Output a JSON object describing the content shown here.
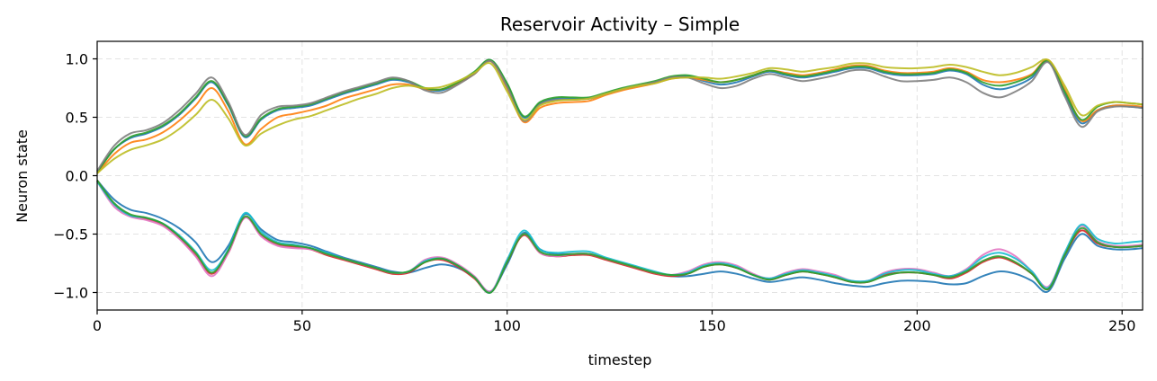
{
  "chart_data": {
    "type": "line",
    "title": "Reservoir Activity – Simple",
    "xlabel": "timestep",
    "ylabel": "Neuron state",
    "xlim": [
      0,
      255
    ],
    "ylim": [
      -1.15,
      1.15
    ],
    "xticks": [
      0,
      50,
      100,
      150,
      200,
      250
    ],
    "xtick_labels": [
      "0",
      "50",
      "100",
      "150",
      "200",
      "250"
    ],
    "yticks": [
      -1.0,
      -0.5,
      0.0,
      0.5,
      1.0
    ],
    "ytick_labels": [
      "−1.0",
      "−0.5",
      "0.0",
      "0.5",
      "1.0"
    ],
    "grid": true,
    "x": [
      0,
      4,
      8,
      12,
      16,
      20,
      24,
      28,
      32,
      36,
      40,
      44,
      48,
      52,
      56,
      60,
      64,
      68,
      72,
      76,
      80,
      84,
      88,
      92,
      96,
      100,
      104,
      108,
      112,
      116,
      120,
      124,
      128,
      132,
      136,
      140,
      144,
      148,
      152,
      156,
      160,
      164,
      168,
      172,
      176,
      180,
      184,
      188,
      192,
      196,
      200,
      204,
      208,
      212,
      216,
      220,
      224,
      228,
      232,
      236,
      240,
      244,
      248,
      252,
      255
    ],
    "series": [
      {
        "color": "#1f77b4",
        "values": [
          0.03,
          0.22,
          0.32,
          0.36,
          0.42,
          0.52,
          0.66,
          0.8,
          0.6,
          0.33,
          0.48,
          0.56,
          0.58,
          0.6,
          0.65,
          0.7,
          0.74,
          0.78,
          0.82,
          0.8,
          0.74,
          0.73,
          0.79,
          0.88,
          0.99,
          0.78,
          0.5,
          0.62,
          0.66,
          0.66,
          0.66,
          0.7,
          0.74,
          0.77,
          0.8,
          0.84,
          0.85,
          0.81,
          0.78,
          0.8,
          0.85,
          0.89,
          0.86,
          0.84,
          0.86,
          0.89,
          0.92,
          0.92,
          0.88,
          0.86,
          0.86,
          0.87,
          0.9,
          0.87,
          0.78,
          0.74,
          0.77,
          0.84,
          0.98,
          0.7,
          0.45,
          0.56,
          0.6,
          0.59,
          0.58
        ]
      },
      {
        "color": "#ff7f0e",
        "values": [
          0.02,
          0.18,
          0.28,
          0.31,
          0.37,
          0.47,
          0.6,
          0.75,
          0.55,
          0.27,
          0.4,
          0.5,
          0.53,
          0.56,
          0.6,
          0.66,
          0.7,
          0.74,
          0.78,
          0.78,
          0.74,
          0.74,
          0.79,
          0.87,
          0.98,
          0.75,
          0.46,
          0.58,
          0.62,
          0.63,
          0.64,
          0.69,
          0.73,
          0.76,
          0.79,
          0.83,
          0.84,
          0.82,
          0.8,
          0.82,
          0.86,
          0.9,
          0.88,
          0.86,
          0.88,
          0.91,
          0.94,
          0.94,
          0.9,
          0.88,
          0.88,
          0.89,
          0.92,
          0.89,
          0.82,
          0.8,
          0.82,
          0.87,
          0.99,
          0.74,
          0.47,
          0.56,
          0.6,
          0.6,
          0.59
        ]
      },
      {
        "color": "#2ca02c",
        "values": [
          0.03,
          0.22,
          0.33,
          0.37,
          0.43,
          0.53,
          0.67,
          0.81,
          0.61,
          0.34,
          0.49,
          0.57,
          0.59,
          0.61,
          0.66,
          0.71,
          0.75,
          0.79,
          0.83,
          0.81,
          0.75,
          0.74,
          0.8,
          0.89,
          0.99,
          0.79,
          0.51,
          0.63,
          0.67,
          0.67,
          0.67,
          0.71,
          0.75,
          0.78,
          0.81,
          0.85,
          0.86,
          0.83,
          0.8,
          0.82,
          0.86,
          0.9,
          0.87,
          0.85,
          0.87,
          0.9,
          0.93,
          0.93,
          0.89,
          0.87,
          0.87,
          0.88,
          0.91,
          0.88,
          0.8,
          0.77,
          0.8,
          0.86,
          0.98,
          0.72,
          0.48,
          0.59,
          0.63,
          0.62,
          0.61
        ]
      },
      {
        "color": "#7f7f7f",
        "values": [
          0.04,
          0.25,
          0.36,
          0.39,
          0.45,
          0.56,
          0.7,
          0.84,
          0.63,
          0.35,
          0.52,
          0.59,
          0.6,
          0.62,
          0.67,
          0.72,
          0.76,
          0.8,
          0.84,
          0.81,
          0.73,
          0.71,
          0.78,
          0.87,
          0.98,
          0.76,
          0.47,
          0.61,
          0.65,
          0.65,
          0.66,
          0.7,
          0.74,
          0.77,
          0.8,
          0.84,
          0.84,
          0.79,
          0.75,
          0.77,
          0.83,
          0.87,
          0.84,
          0.81,
          0.83,
          0.86,
          0.9,
          0.9,
          0.85,
          0.81,
          0.81,
          0.82,
          0.84,
          0.8,
          0.71,
          0.67,
          0.72,
          0.81,
          0.97,
          0.68,
          0.42,
          0.55,
          0.59,
          0.59,
          0.58
        ]
      },
      {
        "color": "#bcbd22",
        "values": [
          0.02,
          0.14,
          0.22,
          0.26,
          0.31,
          0.4,
          0.52,
          0.65,
          0.49,
          0.26,
          0.36,
          0.43,
          0.48,
          0.51,
          0.56,
          0.61,
          0.66,
          0.7,
          0.75,
          0.77,
          0.75,
          0.76,
          0.81,
          0.88,
          0.96,
          0.72,
          0.48,
          0.6,
          0.64,
          0.65,
          0.66,
          0.7,
          0.74,
          0.77,
          0.79,
          0.83,
          0.84,
          0.84,
          0.83,
          0.85,
          0.88,
          0.92,
          0.91,
          0.89,
          0.91,
          0.93,
          0.96,
          0.96,
          0.93,
          0.92,
          0.92,
          0.93,
          0.95,
          0.93,
          0.89,
          0.86,
          0.88,
          0.93,
          0.99,
          0.77,
          0.52,
          0.6,
          0.63,
          0.62,
          0.61
        ]
      },
      {
        "color": "#1f77b4",
        "values": [
          -0.04,
          -0.2,
          -0.29,
          -0.32,
          -0.37,
          -0.45,
          -0.57,
          -0.74,
          -0.6,
          -0.33,
          -0.46,
          -0.55,
          -0.57,
          -0.6,
          -0.65,
          -0.7,
          -0.74,
          -0.78,
          -0.82,
          -0.83,
          -0.79,
          -0.76,
          -0.79,
          -0.87,
          -0.99,
          -0.76,
          -0.49,
          -0.63,
          -0.67,
          -0.67,
          -0.67,
          -0.71,
          -0.75,
          -0.79,
          -0.83,
          -0.86,
          -0.86,
          -0.84,
          -0.82,
          -0.84,
          -0.88,
          -0.91,
          -0.89,
          -0.87,
          -0.89,
          -0.92,
          -0.94,
          -0.95,
          -0.92,
          -0.9,
          -0.9,
          -0.91,
          -0.93,
          -0.92,
          -0.86,
          -0.82,
          -0.84,
          -0.9,
          -0.99,
          -0.71,
          -0.5,
          -0.6,
          -0.63,
          -0.63,
          -0.62
        ]
      },
      {
        "color": "#d62728",
        "values": [
          -0.04,
          -0.24,
          -0.34,
          -0.37,
          -0.42,
          -0.53,
          -0.68,
          -0.84,
          -0.66,
          -0.36,
          -0.51,
          -0.59,
          -0.61,
          -0.63,
          -0.68,
          -0.72,
          -0.76,
          -0.8,
          -0.84,
          -0.83,
          -0.74,
          -0.72,
          -0.78,
          -0.88,
          -1.0,
          -0.74,
          -0.51,
          -0.66,
          -0.69,
          -0.68,
          -0.68,
          -0.72,
          -0.76,
          -0.8,
          -0.84,
          -0.86,
          -0.84,
          -0.78,
          -0.76,
          -0.79,
          -0.85,
          -0.89,
          -0.85,
          -0.82,
          -0.84,
          -0.87,
          -0.91,
          -0.91,
          -0.85,
          -0.83,
          -0.83,
          -0.85,
          -0.88,
          -0.83,
          -0.74,
          -0.7,
          -0.75,
          -0.84,
          -0.97,
          -0.68,
          -0.47,
          -0.58,
          -0.61,
          -0.61,
          -0.6
        ]
      },
      {
        "color": "#e377c2",
        "values": [
          -0.05,
          -0.26,
          -0.35,
          -0.38,
          -0.43,
          -0.54,
          -0.69,
          -0.86,
          -0.66,
          -0.36,
          -0.52,
          -0.6,
          -0.62,
          -0.63,
          -0.67,
          -0.71,
          -0.75,
          -0.79,
          -0.83,
          -0.82,
          -0.72,
          -0.7,
          -0.76,
          -0.86,
          -0.99,
          -0.72,
          -0.5,
          -0.66,
          -0.69,
          -0.67,
          -0.67,
          -0.71,
          -0.75,
          -0.79,
          -0.83,
          -0.85,
          -0.82,
          -0.76,
          -0.74,
          -0.77,
          -0.84,
          -0.88,
          -0.83,
          -0.8,
          -0.82,
          -0.85,
          -0.9,
          -0.9,
          -0.83,
          -0.8,
          -0.8,
          -0.83,
          -0.86,
          -0.8,
          -0.68,
          -0.63,
          -0.69,
          -0.82,
          -0.95,
          -0.66,
          -0.43,
          -0.56,
          -0.6,
          -0.6,
          -0.59
        ]
      },
      {
        "color": "#17becf",
        "values": [
          -0.05,
          -0.24,
          -0.34,
          -0.36,
          -0.41,
          -0.51,
          -0.65,
          -0.81,
          -0.63,
          -0.32,
          -0.48,
          -0.57,
          -0.59,
          -0.62,
          -0.66,
          -0.71,
          -0.75,
          -0.79,
          -0.83,
          -0.82,
          -0.73,
          -0.71,
          -0.77,
          -0.87,
          -1.0,
          -0.72,
          -0.47,
          -0.63,
          -0.66,
          -0.65,
          -0.65,
          -0.7,
          -0.74,
          -0.78,
          -0.82,
          -0.85,
          -0.83,
          -0.77,
          -0.75,
          -0.78,
          -0.85,
          -0.88,
          -0.84,
          -0.81,
          -0.83,
          -0.86,
          -0.9,
          -0.9,
          -0.84,
          -0.81,
          -0.81,
          -0.84,
          -0.86,
          -0.81,
          -0.7,
          -0.66,
          -0.71,
          -0.82,
          -0.96,
          -0.66,
          -0.42,
          -0.54,
          -0.58,
          -0.57,
          -0.56
        ]
      },
      {
        "color": "#2ca02c",
        "values": [
          -0.04,
          -0.23,
          -0.33,
          -0.36,
          -0.41,
          -0.52,
          -0.66,
          -0.83,
          -0.64,
          -0.35,
          -0.5,
          -0.58,
          -0.6,
          -0.62,
          -0.67,
          -0.71,
          -0.75,
          -0.79,
          -0.83,
          -0.82,
          -0.74,
          -0.71,
          -0.77,
          -0.87,
          -1.0,
          -0.74,
          -0.5,
          -0.65,
          -0.68,
          -0.67,
          -0.67,
          -0.71,
          -0.75,
          -0.79,
          -0.83,
          -0.85,
          -0.84,
          -0.78,
          -0.76,
          -0.79,
          -0.85,
          -0.89,
          -0.85,
          -0.82,
          -0.84,
          -0.87,
          -0.91,
          -0.91,
          -0.86,
          -0.83,
          -0.83,
          -0.85,
          -0.87,
          -0.82,
          -0.73,
          -0.69,
          -0.74,
          -0.84,
          -0.97,
          -0.68,
          -0.45,
          -0.57,
          -0.61,
          -0.61,
          -0.6
        ]
      }
    ]
  }
}
